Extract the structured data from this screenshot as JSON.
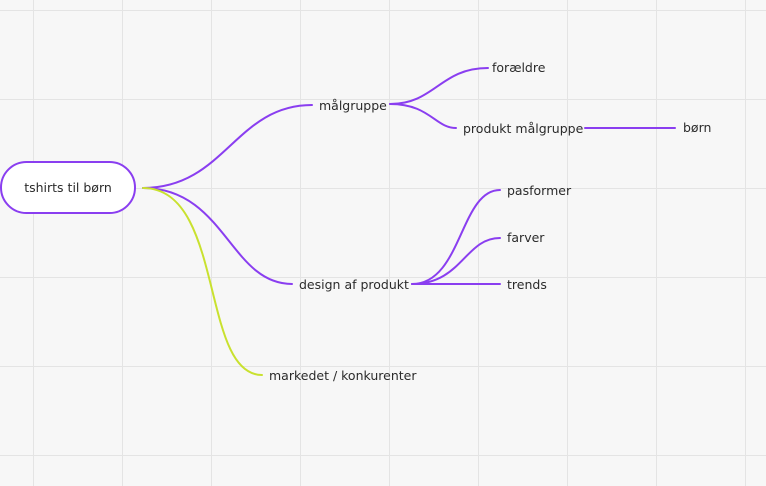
{
  "mindmap": {
    "root": "tshirts til børn",
    "branches": {
      "malgruppe": "målgruppe",
      "foraeldre": "forældre",
      "produkt_malgruppe": "produkt målgruppe",
      "born": "børn",
      "design": "design af produkt",
      "pasformer": "pasformer",
      "farver": "farver",
      "trends": "trends",
      "markedet": "markedet / konkurenter"
    }
  },
  "colors": {
    "primary": "#8a3ef0",
    "secondary": "#c9e12f",
    "grid": "#e4e4e4",
    "background": "#f7f7f7"
  }
}
